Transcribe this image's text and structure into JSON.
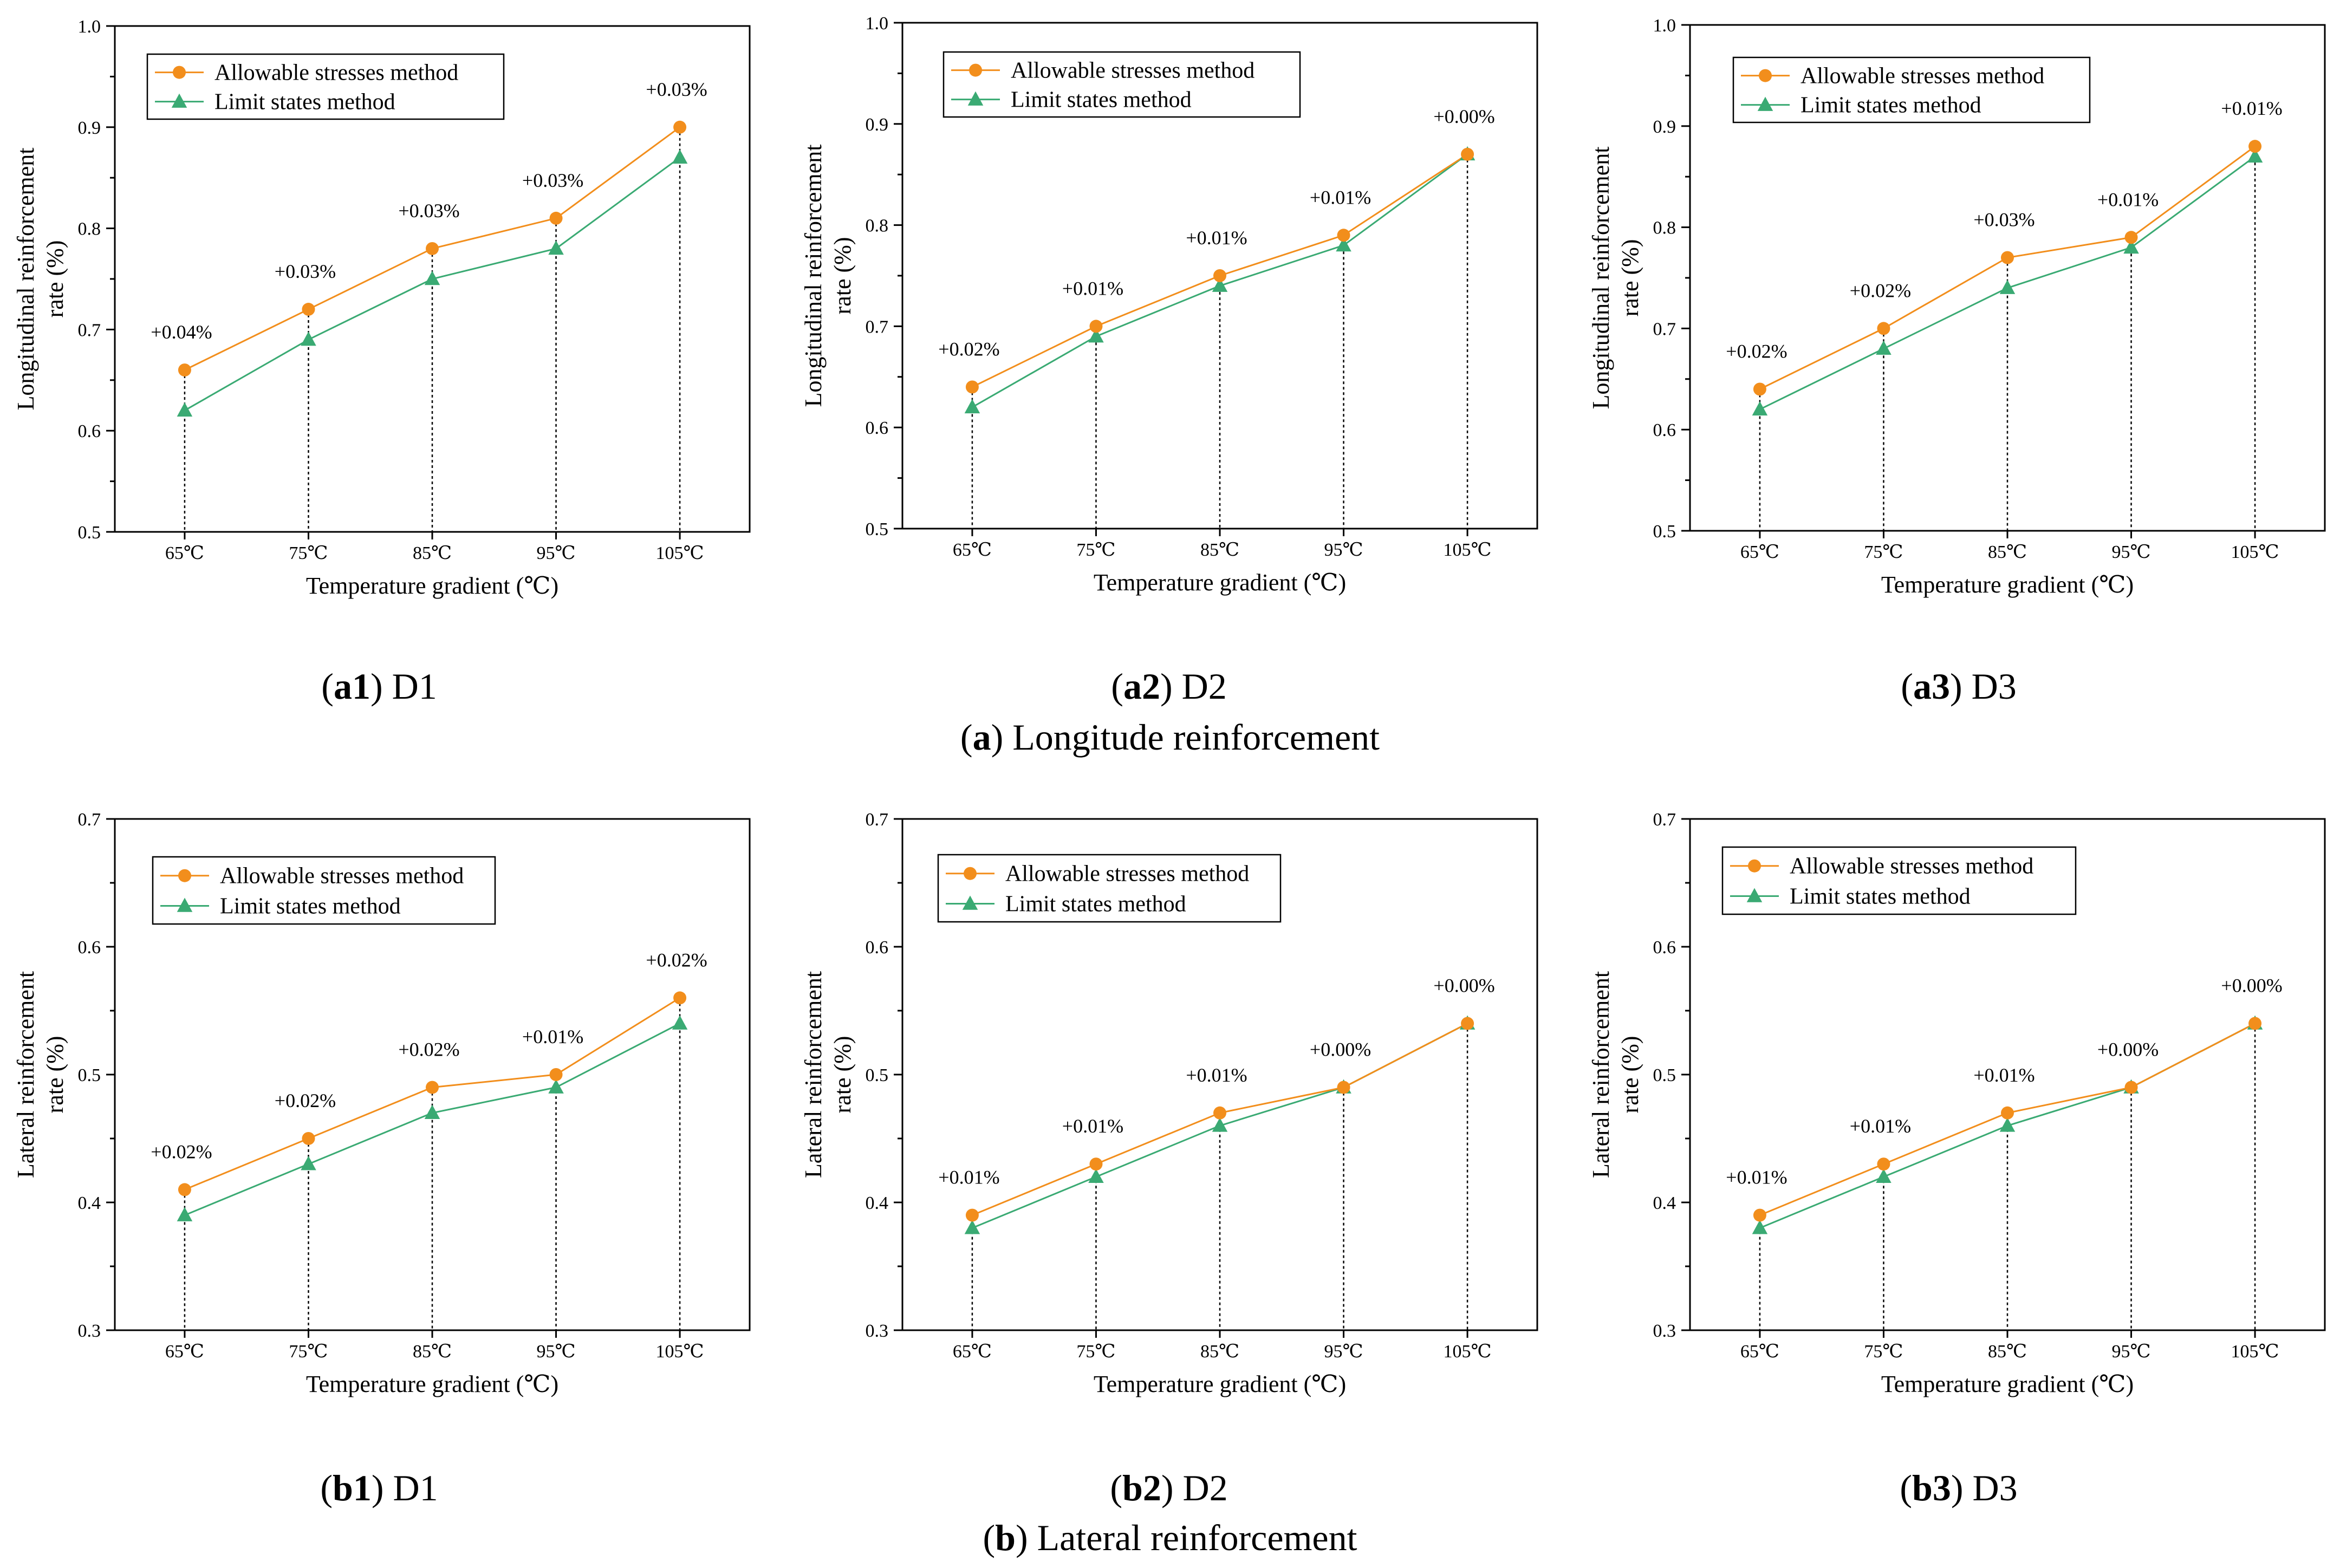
{
  "colors": {
    "allowable": "#f28e1c",
    "limit": "#3aaa73"
  },
  "panels": [
    {
      "id": "a1",
      "caption_tag": "a1",
      "caption_name": "D1"
    },
    {
      "id": "a2",
      "caption_tag": "a2",
      "caption_name": "D2"
    },
    {
      "id": "a3",
      "caption_tag": "a3",
      "caption_name": "D3"
    },
    {
      "id": "b1",
      "caption_tag": "b1",
      "caption_name": "D1"
    },
    {
      "id": "b2",
      "caption_tag": "b2",
      "caption_name": "D2"
    },
    {
      "id": "b3",
      "caption_tag": "b3",
      "caption_name": "D3"
    }
  ],
  "group_captions": {
    "a": {
      "tag": "a",
      "text": "Longitude reinforcement"
    },
    "b": {
      "tag": "b",
      "text": "Lateral reinforcement"
    }
  },
  "chart_data": [
    {
      "type": "line",
      "panel": "a1",
      "categories": [
        "65℃",
        "75℃",
        "85℃",
        "95℃",
        "105℃"
      ],
      "series": [
        {
          "name": "Allowable stresses method",
          "marker": "circle",
          "values": [
            0.66,
            0.72,
            0.78,
            0.81,
            0.9
          ]
        },
        {
          "name": "Limit states method",
          "marker": "triangle",
          "values": [
            0.62,
            0.69,
            0.75,
            0.78,
            0.87
          ]
        }
      ],
      "annotations": [
        "+0.04%",
        "+0.03%",
        "+0.03%",
        "+0.03%",
        "+0.03%"
      ],
      "xlabel": "Temperature gradient (℃)",
      "ylabel": [
        "Longitudinal reinforcement",
        "rate (%)"
      ],
      "ylim": [
        0.5,
        1.0
      ],
      "yticks": [
        "0.5",
        "0.6",
        "0.7",
        "0.8",
        "0.9",
        "1.0"
      ],
      "legend": "top-left",
      "grid": false
    },
    {
      "type": "line",
      "panel": "a2",
      "categories": [
        "65℃",
        "75℃",
        "85℃",
        "95℃",
        "105℃"
      ],
      "series": [
        {
          "name": "Allowable stresses method",
          "marker": "circle",
          "values": [
            0.64,
            0.7,
            0.75,
            0.79,
            0.87
          ]
        },
        {
          "name": "Limit states method",
          "marker": "triangle",
          "values": [
            0.62,
            0.69,
            0.74,
            0.78,
            0.87
          ]
        }
      ],
      "annotations": [
        "+0.02%",
        "+0.01%",
        "+0.01%",
        "+0.01%",
        "+0.00%"
      ],
      "xlabel": "Temperature gradient (℃)",
      "ylabel": [
        "Longitudinal reinforcement",
        "rate (%)"
      ],
      "ylim": [
        0.5,
        1.0
      ],
      "yticks": [
        "0.5",
        "0.6",
        "0.7",
        "0.8",
        "0.9",
        "1.0"
      ],
      "legend": "top-left",
      "grid": false
    },
    {
      "type": "line",
      "panel": "a3",
      "categories": [
        "65℃",
        "75℃",
        "85℃",
        "95℃",
        "105℃"
      ],
      "series": [
        {
          "name": "Allowable stresses method",
          "marker": "circle",
          "values": [
            0.64,
            0.7,
            0.77,
            0.79,
            0.88
          ]
        },
        {
          "name": "Limit states method",
          "marker": "triangle",
          "values": [
            0.62,
            0.68,
            0.74,
            0.78,
            0.87
          ]
        }
      ],
      "annotations": [
        "+0.02%",
        "+0.02%",
        "+0.03%",
        "+0.01%",
        "+0.01%"
      ],
      "xlabel": "Temperature gradient (℃)",
      "ylabel": [
        "Longitudinal reinforcement",
        "rate (%)"
      ],
      "ylim": [
        0.5,
        1.0
      ],
      "yticks": [
        "0.5",
        "0.6",
        "0.7",
        "0.8",
        "0.9",
        "1.0"
      ],
      "legend": "top-left",
      "grid": false
    },
    {
      "type": "line",
      "panel": "b1",
      "categories": [
        "65℃",
        "75℃",
        "85℃",
        "95℃",
        "105℃"
      ],
      "series": [
        {
          "name": "Allowable stresses method",
          "marker": "circle",
          "values": [
            0.41,
            0.45,
            0.49,
            0.5,
            0.56
          ]
        },
        {
          "name": "Limit states method",
          "marker": "triangle",
          "values": [
            0.39,
            0.43,
            0.47,
            0.49,
            0.54
          ]
        }
      ],
      "annotations": [
        "+0.02%",
        "+0.02%",
        "+0.02%",
        "+0.01%",
        "+0.02%"
      ],
      "xlabel": "Temperature gradient (℃)",
      "ylabel": [
        "Lateral reinforcement",
        "rate (%)"
      ],
      "ylim": [
        0.3,
        0.7
      ],
      "yticks": [
        "0.3",
        "0.4",
        "0.5",
        "0.6",
        "0.7"
      ],
      "legend": "top-left",
      "grid": false
    },
    {
      "type": "line",
      "panel": "b2",
      "categories": [
        "65℃",
        "75℃",
        "85℃",
        "95℃",
        "105℃"
      ],
      "series": [
        {
          "name": "Allowable stresses method",
          "marker": "circle",
          "values": [
            0.39,
            0.43,
            0.47,
            0.49,
            0.54
          ]
        },
        {
          "name": "Limit states method",
          "marker": "triangle",
          "values": [
            0.38,
            0.42,
            0.46,
            0.49,
            0.54
          ]
        }
      ],
      "annotations": [
        "+0.01%",
        "+0.01%",
        "+0.01%",
        "+0.00%",
        "+0.00%"
      ],
      "xlabel": "Temperature gradient (℃)",
      "ylabel": [
        "Lateral reinforcement",
        "rate (%)"
      ],
      "ylim": [
        0.3,
        0.7
      ],
      "yticks": [
        "0.3",
        "0.4",
        "0.5",
        "0.6",
        "0.7"
      ],
      "legend": "top-left",
      "grid": false
    },
    {
      "type": "line",
      "panel": "b3",
      "categories": [
        "65℃",
        "75℃",
        "85℃",
        "95℃",
        "105℃"
      ],
      "series": [
        {
          "name": "Allowable stresses method",
          "marker": "circle",
          "values": [
            0.39,
            0.43,
            0.47,
            0.49,
            0.54
          ]
        },
        {
          "name": "Limit states method",
          "marker": "triangle",
          "values": [
            0.38,
            0.42,
            0.46,
            0.49,
            0.54
          ]
        }
      ],
      "annotations": [
        "+0.01%",
        "+0.01%",
        "+0.01%",
        "+0.00%",
        "+0.00%"
      ],
      "xlabel": "Temperature gradient (℃)",
      "ylabel": [
        "Lateral reinforcement",
        "rate (%)"
      ],
      "ylim": [
        0.3,
        0.7
      ],
      "yticks": [
        "0.3",
        "0.4",
        "0.5",
        "0.6",
        "0.7"
      ],
      "legend": "top-left",
      "grid": false
    }
  ]
}
